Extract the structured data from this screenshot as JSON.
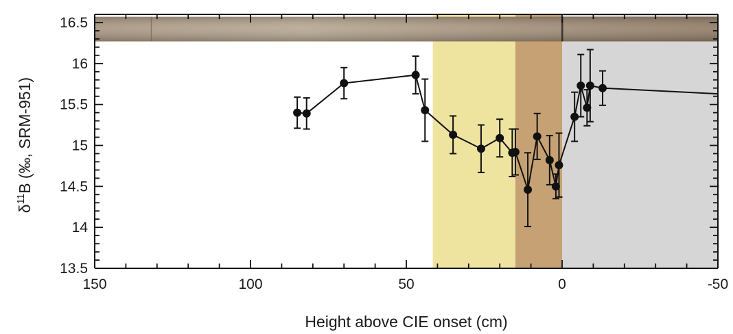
{
  "chart_data": {
    "type": "line",
    "title": "",
    "xlabel": "Height above CIE onset (cm)",
    "ylabel": {
      "prefix": "δ",
      "sup": "11",
      "main": "B (‰, SRM-951)"
    },
    "xlim": [
      150,
      -50
    ],
    "ylim": [
      13.5,
      16.6
    ],
    "x_ticks": [
      150,
      100,
      50,
      0,
      -50
    ],
    "y_ticks": [
      13.5,
      14,
      14.5,
      15,
      15.5,
      16,
      16.5
    ],
    "x_ticks_minor_step": 10,
    "y_ticks_minor_step": 0.1,
    "grid": false,
    "shaded_regions": [
      {
        "from": 41.5,
        "to": 15,
        "color": "#efe3a0"
      },
      {
        "from": 15,
        "to": 0,
        "color": "#c6a173"
      },
      {
        "from": 0,
        "to": -50,
        "color": "#d6d6d6"
      }
    ],
    "core_photo_strip": {
      "y_from": 16.27,
      "y_to": 16.57,
      "colors": [
        "#a99683",
        "#b8a995",
        "#a3907b",
        "#917d68"
      ]
    },
    "series": [
      {
        "marker": "circle",
        "color": "#111111",
        "x": [
          85,
          82,
          70,
          47,
          44,
          35,
          26,
          20,
          16,
          15,
          11,
          8,
          4,
          2,
          1,
          -4,
          -6,
          -8,
          -9,
          -13,
          -50
        ],
        "y": [
          15.4,
          15.39,
          15.76,
          15.86,
          15.43,
          15.13,
          14.96,
          15.09,
          14.91,
          14.92,
          14.46,
          15.11,
          14.82,
          14.5,
          14.76,
          15.35,
          15.73,
          15.46,
          15.73,
          15.7,
          15.63
        ],
        "err": [
          0.19,
          0.19,
          0.19,
          0.23,
          0.38,
          0.23,
          0.29,
          0.23,
          0.29,
          0.28,
          0.45,
          0.28,
          0.3,
          0.15,
          0.39,
          0.3,
          0.38,
          0.22,
          0.44,
          0.21,
          null
        ]
      }
    ]
  }
}
